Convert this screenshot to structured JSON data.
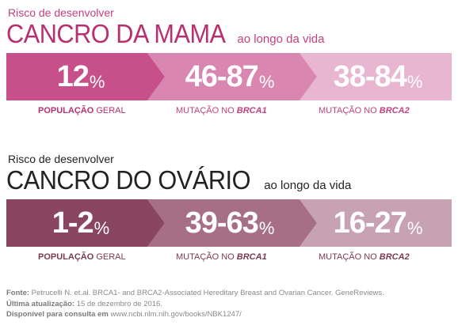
{
  "breast": {
    "kicker": "Risco de desenvolver",
    "title": "CANCRO DA MAMA",
    "suffix": "ao longo da vida",
    "colors": [
      "#c8508a",
      "#d987b1",
      "#e8b6d0"
    ],
    "segments": [
      {
        "value": "12",
        "unit": "%",
        "label_bold": "POPULAÇÃO",
        "label_rest": " GERAL",
        "style": "bold-first"
      },
      {
        "value": "46-87",
        "unit": "%",
        "label_pre": "MUTAÇÃO NO ",
        "label_gene": "BRCA1",
        "style": "gene"
      },
      {
        "value": "38-84",
        "unit": "%",
        "label_pre": "MUTAÇÃO NO ",
        "label_gene": "BRCA2",
        "style": "gene"
      }
    ]
  },
  "ovary": {
    "kicker": "Risco de desenvolver",
    "title": "CANCRO DO OVÁRIO",
    "suffix": "ao longo da vida",
    "colors": [
      "#8a4660",
      "#a76f86",
      "#c7a2b3"
    ],
    "segments": [
      {
        "value": "1-2",
        "unit": "%",
        "label_bold": "POPULAÇÃO",
        "label_rest": " GERAL",
        "style": "bold-first"
      },
      {
        "value": "39-63",
        "unit": "%",
        "label_pre": "MUTAÇÃO NO ",
        "label_gene": "BRCA1",
        "style": "gene"
      },
      {
        "value": "16-27",
        "unit": "%",
        "label_pre": "MUTAÇÃO NO ",
        "label_gene": "BRCA2",
        "style": "gene"
      }
    ]
  },
  "footer": {
    "source_label": "Fonte:",
    "source_text": " Petrucelli N. et.al. BRCA1- and BRCA2-Associated Hereditary Breast and Ovarian Cancer. GeneReviews.",
    "updated_label": "Última atualização:",
    "updated_text": " 15 de dezembro de 2016.",
    "available_label": "Disponível para consulta em",
    "available_text": " www.ncbi.nlm.nih.gov/books/NBK1247/"
  }
}
